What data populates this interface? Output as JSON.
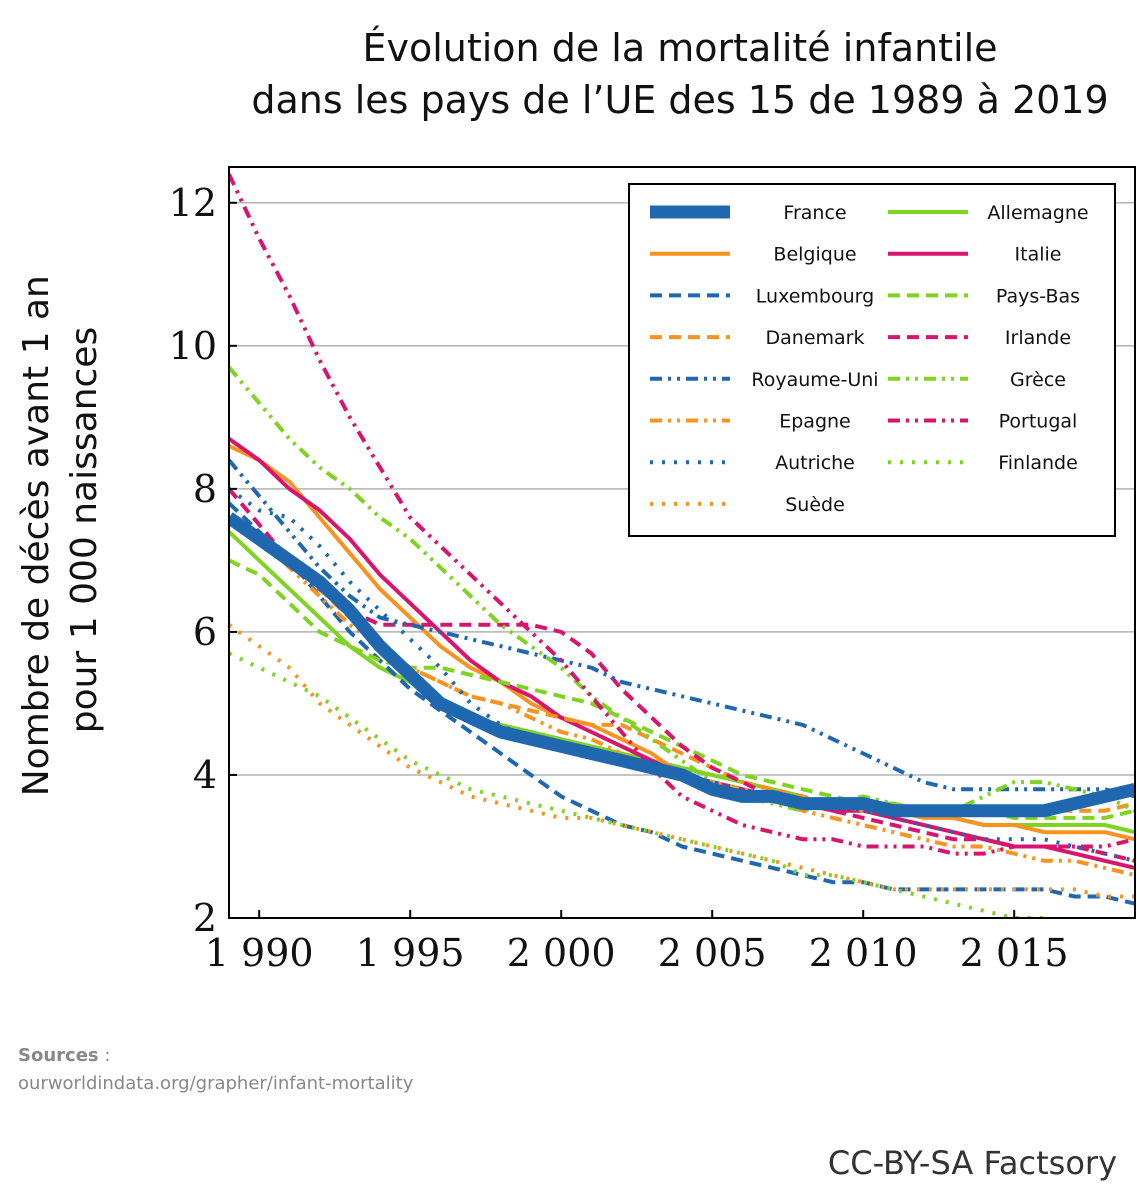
{
  "chart_data": {
    "type": "line",
    "title_line1": "Évolution de la mortalité infantile",
    "title_line2": "dans les pays de l’UE des 15 de 1989 à 2019",
    "ylabel_line1": "Nombre de décès avant 1 an",
    "ylabel_line2": "pour 1 000 naissances",
    "xlim": [
      1989,
      2019
    ],
    "ylim": [
      2,
      12.5
    ],
    "x_ticks": [
      1990,
      1995,
      2000,
      2005,
      2010,
      2015
    ],
    "x_tick_labels": [
      "1 990",
      "1 995",
      "2 000",
      "2 005",
      "2 010",
      "2 015"
    ],
    "y_ticks": [
      2,
      4,
      6,
      8,
      10,
      12
    ],
    "y_tick_labels": [
      "2",
      "4",
      "6",
      "8",
      "10",
      "12"
    ],
    "grid": "horizontal",
    "legend_position": "top-right",
    "x": [
      1989,
      1990,
      1991,
      1992,
      1993,
      1994,
      1995,
      1996,
      1997,
      1998,
      1999,
      2000,
      2001,
      2002,
      2003,
      2004,
      2005,
      2006,
      2007,
      2008,
      2009,
      2010,
      2011,
      2012,
      2013,
      2014,
      2015,
      2016,
      2017,
      2018,
      2019
    ],
    "series": [
      {
        "name": "France",
        "color": "#1f68b0",
        "style": "solid",
        "width": 13,
        "values": [
          7.6,
          7.3,
          7.0,
          6.7,
          6.3,
          5.8,
          5.4,
          5.0,
          4.8,
          4.6,
          4.5,
          4.4,
          4.3,
          4.2,
          4.1,
          4.0,
          3.8,
          3.7,
          3.7,
          3.6,
          3.6,
          3.6,
          3.5,
          3.5,
          3.5,
          3.5,
          3.5,
          3.5,
          3.6,
          3.7,
          3.8
        ]
      },
      {
        "name": "Allemagne",
        "color": "#7fd321",
        "style": "solid",
        "width": 4,
        "values": [
          7.4,
          7.0,
          6.6,
          6.2,
          5.8,
          5.5,
          5.3,
          5.0,
          4.8,
          4.7,
          4.6,
          4.5,
          4.4,
          4.3,
          4.2,
          4.1,
          4.0,
          3.9,
          3.8,
          3.7,
          3.5,
          3.6,
          3.6,
          3.5,
          3.4,
          3.3,
          3.3,
          3.3,
          3.3,
          3.3,
          3.2
        ]
      },
      {
        "name": "Belgique",
        "color": "#f7931e",
        "style": "solid",
        "width": 4,
        "values": [
          8.6,
          8.4,
          8.1,
          7.6,
          7.1,
          6.6,
          6.2,
          5.8,
          5.5,
          5.3,
          5.0,
          4.8,
          4.7,
          4.5,
          4.3,
          4.0,
          3.9,
          3.8,
          3.7,
          3.6,
          3.5,
          3.6,
          3.5,
          3.4,
          3.4,
          3.3,
          3.3,
          3.2,
          3.2,
          3.2,
          3.1
        ]
      },
      {
        "name": "Italie",
        "color": "#d9146e",
        "style": "solid",
        "width": 4,
        "values": [
          8.7,
          8.4,
          8.0,
          7.7,
          7.3,
          6.8,
          6.4,
          6.0,
          5.6,
          5.3,
          5.1,
          4.8,
          4.6,
          4.4,
          4.2,
          4.0,
          3.9,
          3.8,
          3.7,
          3.6,
          3.5,
          3.5,
          3.4,
          3.3,
          3.2,
          3.1,
          3.0,
          3.0,
          2.9,
          2.8,
          2.7
        ]
      },
      {
        "name": "Luxembourg",
        "color": "#1f68b0",
        "style": "dashed",
        "width": 4,
        "values": [
          7.8,
          7.4,
          7.0,
          6.5,
          6.0,
          5.6,
          5.2,
          4.9,
          4.6,
          4.3,
          4.0,
          3.7,
          3.5,
          3.3,
          3.2,
          3.0,
          2.9,
          2.8,
          2.7,
          2.6,
          2.5,
          2.5,
          2.4,
          2.4,
          2.4,
          2.4,
          2.4,
          2.4,
          2.3,
          2.3,
          2.2
        ]
      },
      {
        "name": "Pays-Bas",
        "color": "#7fd321",
        "style": "dashed",
        "width": 4,
        "values": [
          7.0,
          6.8,
          6.4,
          6.0,
          5.8,
          5.6,
          5.5,
          5.5,
          5.4,
          5.3,
          5.2,
          5.1,
          5.0,
          4.8,
          4.6,
          4.4,
          4.2,
          4.0,
          3.9,
          3.8,
          3.7,
          3.6,
          3.6,
          3.5,
          3.5,
          3.5,
          3.4,
          3.4,
          3.4,
          3.4,
          3.5
        ]
      },
      {
        "name": "Danemark",
        "color": "#f7931e",
        "style": "dashed",
        "width": 4,
        "values": [
          7.6,
          7.3,
          7.0,
          6.6,
          6.2,
          5.8,
          5.5,
          5.3,
          5.1,
          5.0,
          4.9,
          4.8,
          4.7,
          4.7,
          4.5,
          4.3,
          4.1,
          3.9,
          3.8,
          3.7,
          3.6,
          3.5,
          3.5,
          3.5,
          3.5,
          3.5,
          3.5,
          3.5,
          3.5,
          3.5,
          3.6
        ]
      },
      {
        "name": "Irlande",
        "color": "#d9146e",
        "style": "dashed",
        "width": 4,
        "values": [
          8.0,
          7.5,
          7.0,
          6.6,
          6.3,
          6.1,
          6.1,
          6.1,
          6.1,
          6.1,
          6.1,
          6.0,
          5.7,
          5.2,
          4.8,
          4.4,
          4.1,
          3.9,
          3.7,
          3.6,
          3.5,
          3.4,
          3.3,
          3.2,
          3.1,
          3.1,
          3.0,
          3.0,
          3.0,
          2.9,
          2.8
        ]
      },
      {
        "name": "Royaume-Uni",
        "color": "#1f68b0",
        "style": "dashdotdot",
        "width": 4,
        "values": [
          8.4,
          7.9,
          7.4,
          6.9,
          6.5,
          6.2,
          6.1,
          6.0,
          5.9,
          5.8,
          5.7,
          5.6,
          5.5,
          5.3,
          5.2,
          5.1,
          5.0,
          4.9,
          4.8,
          4.7,
          4.5,
          4.3,
          4.1,
          3.9,
          3.8,
          3.8,
          3.8,
          3.8,
          3.8,
          3.8,
          3.7
        ]
      },
      {
        "name": "Grèce",
        "color": "#7fd321",
        "style": "dashdotdot",
        "width": 4,
        "values": [
          9.7,
          9.2,
          8.7,
          8.3,
          8.0,
          7.6,
          7.3,
          6.9,
          6.5,
          6.1,
          5.8,
          5.5,
          5.1,
          4.8,
          4.5,
          4.2,
          3.9,
          3.7,
          3.6,
          3.5,
          3.6,
          3.7,
          3.6,
          3.5,
          3.5,
          3.7,
          3.9,
          3.9,
          3.8,
          3.7,
          3.5
        ]
      },
      {
        "name": "Epagne",
        "color": "#f7931e",
        "style": "dashdotdot",
        "width": 4,
        "values": [
          7.6,
          7.3,
          6.9,
          6.5,
          6.1,
          5.8,
          5.5,
          5.3,
          5.1,
          5.0,
          4.8,
          4.6,
          4.5,
          4.3,
          4.1,
          4.0,
          3.9,
          3.8,
          3.7,
          3.5,
          3.4,
          3.3,
          3.2,
          3.1,
          3.0,
          3.0,
          2.9,
          2.8,
          2.8,
          2.7,
          2.6
        ]
      },
      {
        "name": "Portugal",
        "color": "#d9146e",
        "style": "dashdotdot",
        "width": 4,
        "values": [
          12.4,
          11.5,
          10.7,
          9.8,
          9.0,
          8.3,
          7.6,
          7.2,
          6.8,
          6.4,
          6.0,
          5.6,
          5.1,
          4.6,
          4.1,
          3.7,
          3.5,
          3.3,
          3.2,
          3.1,
          3.1,
          3.0,
          3.0,
          3.0,
          2.9,
          2.9,
          3.0,
          3.0,
          3.0,
          3.0,
          3.1
        ]
      },
      {
        "name": "Autriche",
        "color": "#1f68b0",
        "style": "dotted",
        "width": 4,
        "values": [
          8.0,
          7.7,
          7.6,
          7.2,
          6.7,
          6.3,
          5.9,
          5.5,
          5.0,
          4.7,
          4.5,
          4.4,
          4.3,
          4.2,
          4.1,
          4.0,
          3.9,
          3.8,
          3.7,
          3.6,
          3.6,
          3.5,
          3.4,
          3.3,
          3.2,
          3.1,
          3.1,
          3.1,
          3.0,
          2.9,
          2.8
        ]
      },
      {
        "name": "Finlande",
        "color": "#7fd321",
        "style": "dotted",
        "width": 4,
        "values": [
          5.7,
          5.5,
          5.3,
          5.1,
          4.8,
          4.5,
          4.2,
          4.0,
          3.8,
          3.7,
          3.6,
          3.5,
          3.4,
          3.3,
          3.2,
          3.1,
          3.0,
          2.9,
          2.8,
          2.6,
          2.6,
          2.5,
          2.4,
          2.3,
          2.2,
          2.1,
          2.0,
          2.0,
          1.9,
          1.9,
          2.0
        ]
      },
      {
        "name": "Suède",
        "color": "#f7931e",
        "style": "dotted",
        "width": 4,
        "values": [
          6.1,
          5.8,
          5.5,
          5.0,
          4.7,
          4.4,
          4.1,
          3.9,
          3.7,
          3.6,
          3.5,
          3.4,
          3.4,
          3.3,
          3.2,
          3.1,
          3.0,
          2.9,
          2.8,
          2.7,
          2.6,
          2.5,
          2.4,
          2.4,
          2.4,
          2.4,
          2.4,
          2.4,
          2.4,
          2.3,
          2.3
        ]
      }
    ],
    "legend_layout": [
      [
        "France",
        "Allemagne"
      ],
      [
        "Belgique",
        "Italie"
      ],
      [
        "Luxembourg",
        "Pays-Bas"
      ],
      [
        "Danemark",
        "Irlande"
      ],
      [
        "Royaume-Uni",
        "Grèce"
      ],
      [
        "Epagne",
        "Portugal"
      ],
      [
        "Autriche",
        "Finlande"
      ],
      [
        "Suède",
        null
      ]
    ]
  },
  "footer": {
    "sources_label": "Sources",
    "sources_sep": " :",
    "sources_url": "ourworldindata.org/grapher/infant-mortality",
    "credit": "CC-BY-SA Factsory"
  }
}
